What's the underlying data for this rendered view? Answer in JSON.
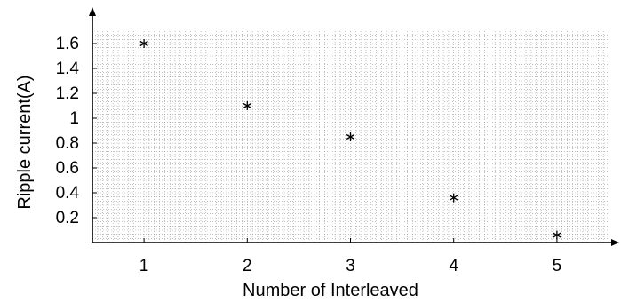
{
  "chart_data": {
    "type": "scatter",
    "title": "",
    "xlabel": "Number of Interleaved",
    "ylabel": "Ripple current(A)",
    "xlim": [
      0.5,
      5.5
    ],
    "ylim": [
      0,
      1.7
    ],
    "x_ticks": [
      "1",
      "2",
      "3",
      "4",
      "5"
    ],
    "y_ticks": [
      "0.2",
      "0.4",
      "0.6",
      "0.8",
      "1",
      "1.2",
      "1.4",
      "1.6"
    ],
    "grid": true,
    "marker": "asterisk",
    "marker_color": "#000000",
    "points": [
      {
        "x": 1,
        "y": 1.6
      },
      {
        "x": 2,
        "y": 1.1
      },
      {
        "x": 3,
        "y": 0.85
      },
      {
        "x": 4,
        "y": 0.36
      },
      {
        "x": 5,
        "y": 0.06
      }
    ]
  }
}
